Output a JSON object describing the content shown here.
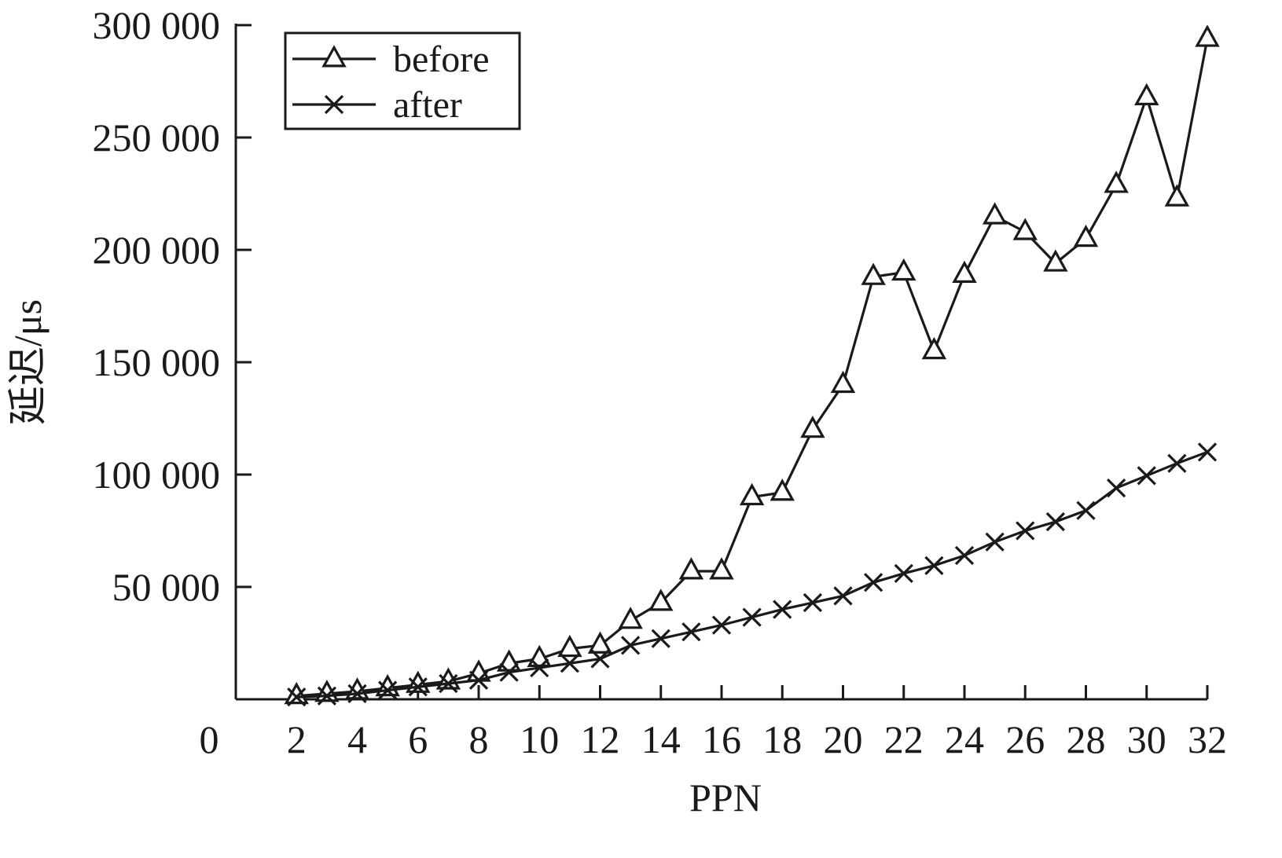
{
  "chart_data": {
    "type": "line",
    "title": "",
    "xlabel": "PPN",
    "ylabel": "延迟/μs",
    "origin_label": "0",
    "xlim": [
      0,
      32
    ],
    "ylim": [
      0,
      300000
    ],
    "x_ticks": [
      2,
      4,
      6,
      8,
      10,
      12,
      14,
      16,
      18,
      20,
      22,
      24,
      26,
      28,
      30,
      32
    ],
    "x_tick_labels": [
      "2",
      "4",
      "6",
      "8",
      "10",
      "12",
      "14",
      "16",
      "18",
      "20",
      "22",
      "24",
      "26",
      "28",
      "30",
      "32"
    ],
    "y_ticks": [
      50000,
      100000,
      150000,
      200000,
      250000,
      300000
    ],
    "y_tick_labels": [
      "50 000",
      "100 000",
      "150 000",
      "200 000",
      "250 000",
      "300 000"
    ],
    "grid": false,
    "legend_position": "top-left",
    "line_color": "#1a1a1a",
    "x": [
      2,
      3,
      4,
      5,
      6,
      7,
      8,
      9,
      10,
      11,
      12,
      13,
      14,
      15,
      16,
      17,
      18,
      19,
      20,
      21,
      22,
      23,
      24,
      25,
      26,
      27,
      28,
      29,
      30,
      31,
      32
    ],
    "series": [
      {
        "name": "before",
        "marker": "triangle",
        "values": [
          1500,
          2500,
          3500,
          5000,
          6500,
          8000,
          11500,
          16000,
          18000,
          22500,
          24000,
          35000,
          43000,
          57000,
          57000,
          90000,
          92000,
          120000,
          140000,
          188000,
          190000,
          155000,
          189000,
          215000,
          208000,
          194000,
          205000,
          229000,
          268000,
          223000,
          294000
        ]
      },
      {
        "name": "after",
        "marker": "x",
        "values": [
          1000,
          1500,
          2500,
          4000,
          5500,
          7000,
          8500,
          12000,
          14000,
          16000,
          18000,
          24000,
          27000,
          30000,
          33000,
          36500,
          40000,
          43000,
          46000,
          52000,
          56000,
          59500,
          64000,
          70000,
          75000,
          79000,
          84000,
          94000,
          99500,
          105000,
          110000
        ]
      }
    ]
  }
}
